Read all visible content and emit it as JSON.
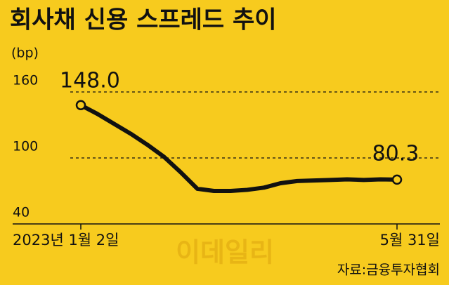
{
  "chart_data": {
    "type": "line",
    "title": "회사채 신용 스프레드 추이",
    "unit": "(bp)",
    "categories": [
      "2023년 1월 2일",
      null,
      null,
      null,
      null,
      null,
      null,
      null,
      null,
      null,
      null,
      null,
      null,
      null,
      null,
      null,
      null,
      null,
      null,
      "5월 31일"
    ],
    "series": [
      {
        "name": "회사채 신용 스프레드",
        "color": "#111111",
        "values": [
          148.0,
          140,
          131,
          122,
          112,
          101,
          87,
          72,
          70,
          70,
          71,
          73,
          77,
          79,
          79.5,
          80,
          80.5,
          80,
          80.5,
          80.3
        ],
        "value_labels": [
          "148.0",
          null,
          null,
          null,
          null,
          null,
          null,
          null,
          null,
          null,
          null,
          null,
          null,
          null,
          null,
          null,
          null,
          null,
          null,
          "80.3"
        ]
      }
    ],
    "ylim": [
      40,
      160
    ],
    "yticks": [
      40,
      100,
      160
    ],
    "grid": true,
    "source": "자료:금융투자협회",
    "watermark": "이데일리"
  }
}
